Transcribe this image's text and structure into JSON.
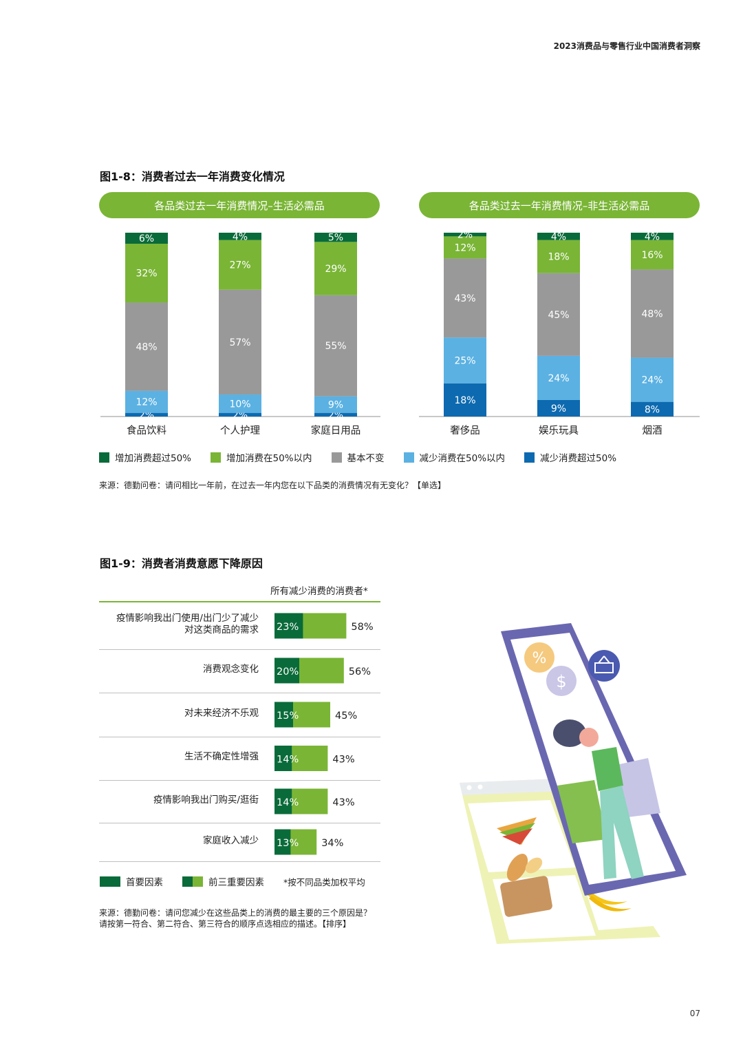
{
  "header": {
    "report_title": "2023消费品与零售行业中国消费者洞察"
  },
  "fig8": {
    "title": "图1-8：消费者过去一年消费变化情况",
    "left_pill": "各品类过去一年消费情况–生活必需品",
    "right_pill": "各品类过去一年消费情况–非生活必需品"
  },
  "chart_data": [
    {
      "type": "bar",
      "stacked": true,
      "categories": [
        "食品饮料",
        "个人护理",
        "家庭日用品"
      ],
      "series": [
        {
          "name": "减少消费超过50%",
          "values": [
            2,
            2,
            2
          ],
          "color": "#0d6ab0"
        },
        {
          "name": "减少消费在50%以内",
          "values": [
            12,
            10,
            9
          ],
          "color": "#5bb1e2"
        },
        {
          "name": "基本不变",
          "values": [
            48,
            57,
            55
          ],
          "color": "#999999"
        },
        {
          "name": "增加消费在50%以内",
          "values": [
            32,
            27,
            29
          ],
          "color": "#7ab536"
        },
        {
          "name": "增加消费超过50%",
          "values": [
            6,
            4,
            5
          ],
          "color": "#0a6b3a"
        }
      ],
      "value_labels": [
        [
          "2%",
          "12%",
          "48%",
          "32%",
          "6%"
        ],
        [
          "2%",
          "10%",
          "57%",
          "27%",
          "4%"
        ],
        [
          "2%",
          "9%",
          "55%",
          "29%",
          "5%"
        ]
      ],
      "ylim": [
        0,
        100
      ]
    },
    {
      "type": "bar",
      "stacked": true,
      "categories": [
        "奢侈品",
        "娱乐玩具",
        "烟酒"
      ],
      "series": [
        {
          "name": "减少消费超过50%",
          "values": [
            18,
            9,
            8
          ],
          "color": "#0d6ab0"
        },
        {
          "name": "减少消费在50%以内",
          "values": [
            25,
            24,
            24
          ],
          "color": "#5bb1e2"
        },
        {
          "name": "基本不变",
          "values": [
            43,
            45,
            48
          ],
          "color": "#999999"
        },
        {
          "name": "增加消费在50%以内",
          "values": [
            12,
            18,
            16
          ],
          "color": "#7ab536"
        },
        {
          "name": "增加消费超过50%",
          "values": [
            2,
            4,
            4
          ],
          "color": "#0a6b3a"
        }
      ],
      "value_labels": [
        [
          "18%",
          "25%",
          "43%",
          "12%",
          "2%"
        ],
        [
          "9%",
          "24%",
          "45%",
          "18%",
          "4%"
        ],
        [
          "8%",
          "24%",
          "48%",
          "16%",
          "4%"
        ]
      ],
      "ylim": [
        0,
        100
      ]
    },
    {
      "type": "bar",
      "orientation": "horizontal",
      "categories": [
        "疫情影响我出门使用/出门少了减少对这类商品的需求",
        "消费观念变化",
        "对未来经济不乐观",
        "生活不确定性增强",
        "疫情影响我出门购买/逛街",
        "家庭收入减少"
      ],
      "category_lines": [
        [
          "疫情影响我出门使用/出门少了减少",
          "对这类商品的需求"
        ],
        [
          "消费观念变化"
        ],
        [
          "对未来经济不乐观"
        ],
        [
          "生活不确定性增强"
        ],
        [
          "疫情影响我出门购买/逛街"
        ],
        [
          "家庭收入减少"
        ]
      ],
      "series": [
        {
          "name": "首要因素",
          "values": [
            23,
            20,
            15,
            14,
            14,
            13
          ],
          "color": "#0a6b3a"
        },
        {
          "name": "前三重要因素",
          "values": [
            58,
            56,
            45,
            43,
            43,
            34
          ],
          "color": "#7ab536"
        }
      ],
      "inner_labels": [
        "23%",
        "20%",
        "15%",
        "14%",
        "14%",
        "13%"
      ],
      "outer_labels": [
        "58%",
        "56%",
        "45%",
        "43%",
        "43%",
        "34%"
      ],
      "column_header": "所有减少消费的消费者*",
      "xlim": [
        0,
        100
      ]
    }
  ],
  "legend8": {
    "items": [
      {
        "label": "增加消费超过50%",
        "color": "#0a6b3a"
      },
      {
        "label": "增加消费在50%以内",
        "color": "#7ab536"
      },
      {
        "label": "基本不变",
        "color": "#999999"
      },
      {
        "label": "减少消费在50%以内",
        "color": "#5bb1e2"
      },
      {
        "label": "减少消费超过50%",
        "color": "#0d6ab0"
      }
    ]
  },
  "source8": "来源：德勤问卷：请问相比一年前，在过去一年内您在以下品类的消费情况有无变化？【单选】",
  "fig9": {
    "title": "图1-9：消费者消费意愿下降原因",
    "legend_primary": "首要因素",
    "legend_top3": "前三重要因素",
    "note": "*按不同品类加权平均",
    "source": "来源：德勤问卷：请问您减少在这些品类上的消费的最主要的三个原因是？请按第一符合、第二符合、第三符合的顺序点选相应的描述。【排序】"
  },
  "illustration": {
    "icons": [
      "percent-icon",
      "dollar-icon",
      "basket-icon",
      "shopping-bag-icon",
      "sandwich-icon",
      "bread-icon",
      "banana-icon"
    ]
  },
  "page_number": "07"
}
